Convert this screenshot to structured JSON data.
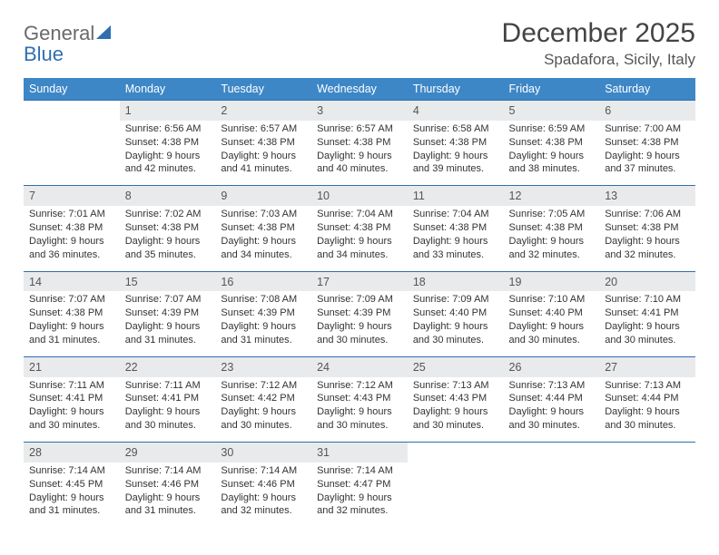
{
  "brand": {
    "part1": "General",
    "part2": "Blue"
  },
  "title": "December 2025",
  "location": "Spadafora, Sicily, Italy",
  "colors": {
    "header_bg": "#3d87c7",
    "header_text": "#ffffff",
    "daynum_bg": "#e9eaeb",
    "rule": "#2f6fb0",
    "text": "#333333",
    "brand_gray": "#6a6a6a",
    "brand_blue": "#2f6fb0"
  },
  "weekdays": [
    "Sunday",
    "Monday",
    "Tuesday",
    "Wednesday",
    "Thursday",
    "Friday",
    "Saturday"
  ],
  "weeks": [
    {
      "nums": [
        "",
        "1",
        "2",
        "3",
        "4",
        "5",
        "6"
      ],
      "details": [
        "",
        "Sunrise: 6:56 AM\nSunset: 4:38 PM\nDaylight: 9 hours and 42 minutes.",
        "Sunrise: 6:57 AM\nSunset: 4:38 PM\nDaylight: 9 hours and 41 minutes.",
        "Sunrise: 6:57 AM\nSunset: 4:38 PM\nDaylight: 9 hours and 40 minutes.",
        "Sunrise: 6:58 AM\nSunset: 4:38 PM\nDaylight: 9 hours and 39 minutes.",
        "Sunrise: 6:59 AM\nSunset: 4:38 PM\nDaylight: 9 hours and 38 minutes.",
        "Sunrise: 7:00 AM\nSunset: 4:38 PM\nDaylight: 9 hours and 37 minutes."
      ]
    },
    {
      "nums": [
        "7",
        "8",
        "9",
        "10",
        "11",
        "12",
        "13"
      ],
      "details": [
        "Sunrise: 7:01 AM\nSunset: 4:38 PM\nDaylight: 9 hours and 36 minutes.",
        "Sunrise: 7:02 AM\nSunset: 4:38 PM\nDaylight: 9 hours and 35 minutes.",
        "Sunrise: 7:03 AM\nSunset: 4:38 PM\nDaylight: 9 hours and 34 minutes.",
        "Sunrise: 7:04 AM\nSunset: 4:38 PM\nDaylight: 9 hours and 34 minutes.",
        "Sunrise: 7:04 AM\nSunset: 4:38 PM\nDaylight: 9 hours and 33 minutes.",
        "Sunrise: 7:05 AM\nSunset: 4:38 PM\nDaylight: 9 hours and 32 minutes.",
        "Sunrise: 7:06 AM\nSunset: 4:38 PM\nDaylight: 9 hours and 32 minutes."
      ]
    },
    {
      "nums": [
        "14",
        "15",
        "16",
        "17",
        "18",
        "19",
        "20"
      ],
      "details": [
        "Sunrise: 7:07 AM\nSunset: 4:38 PM\nDaylight: 9 hours and 31 minutes.",
        "Sunrise: 7:07 AM\nSunset: 4:39 PM\nDaylight: 9 hours and 31 minutes.",
        "Sunrise: 7:08 AM\nSunset: 4:39 PM\nDaylight: 9 hours and 31 minutes.",
        "Sunrise: 7:09 AM\nSunset: 4:39 PM\nDaylight: 9 hours and 30 minutes.",
        "Sunrise: 7:09 AM\nSunset: 4:40 PM\nDaylight: 9 hours and 30 minutes.",
        "Sunrise: 7:10 AM\nSunset: 4:40 PM\nDaylight: 9 hours and 30 minutes.",
        "Sunrise: 7:10 AM\nSunset: 4:41 PM\nDaylight: 9 hours and 30 minutes."
      ]
    },
    {
      "nums": [
        "21",
        "22",
        "23",
        "24",
        "25",
        "26",
        "27"
      ],
      "details": [
        "Sunrise: 7:11 AM\nSunset: 4:41 PM\nDaylight: 9 hours and 30 minutes.",
        "Sunrise: 7:11 AM\nSunset: 4:41 PM\nDaylight: 9 hours and 30 minutes.",
        "Sunrise: 7:12 AM\nSunset: 4:42 PM\nDaylight: 9 hours and 30 minutes.",
        "Sunrise: 7:12 AM\nSunset: 4:43 PM\nDaylight: 9 hours and 30 minutes.",
        "Sunrise: 7:13 AM\nSunset: 4:43 PM\nDaylight: 9 hours and 30 minutes.",
        "Sunrise: 7:13 AM\nSunset: 4:44 PM\nDaylight: 9 hours and 30 minutes.",
        "Sunrise: 7:13 AM\nSunset: 4:44 PM\nDaylight: 9 hours and 30 minutes."
      ]
    },
    {
      "nums": [
        "28",
        "29",
        "30",
        "31",
        "",
        "",
        ""
      ],
      "details": [
        "Sunrise: 7:14 AM\nSunset: 4:45 PM\nDaylight: 9 hours and 31 minutes.",
        "Sunrise: 7:14 AM\nSunset: 4:46 PM\nDaylight: 9 hours and 31 minutes.",
        "Sunrise: 7:14 AM\nSunset: 4:46 PM\nDaylight: 9 hours and 32 minutes.",
        "Sunrise: 7:14 AM\nSunset: 4:47 PM\nDaylight: 9 hours and 32 minutes.",
        "",
        "",
        ""
      ]
    }
  ]
}
